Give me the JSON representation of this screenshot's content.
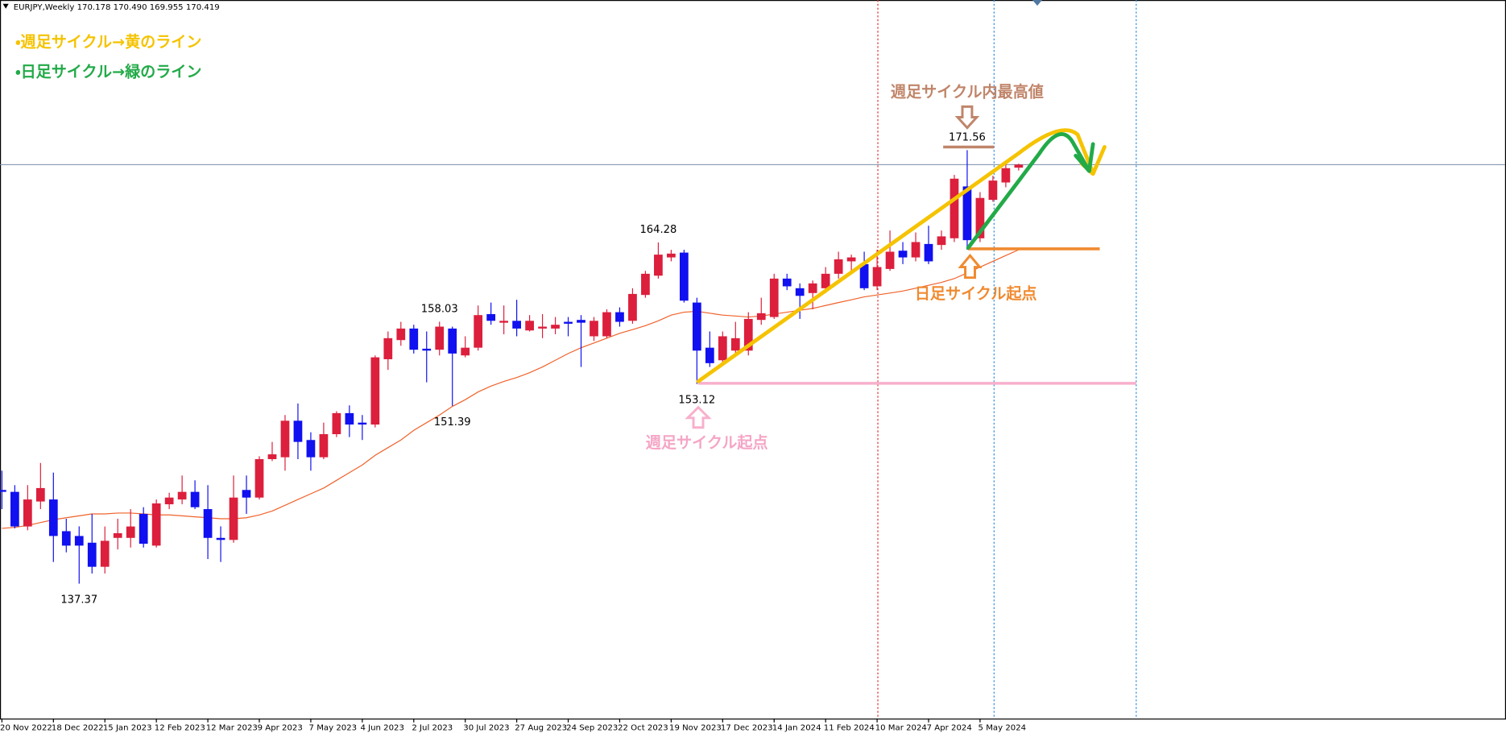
{
  "chart_data": {
    "type": "candlestick",
    "title": "EURJPY,Weekly  170.178 170.490 169.955 170.419",
    "annotations": [
      {
        "text": "・週足サイクル→黄のライン"
      },
      {
        "text": "・日足サイクル→緑のライン"
      },
      {
        "text": "週足サイクル内最高値"
      },
      {
        "text": "日足サイクル起点"
      },
      {
        "text": "週足サイクル起点"
      }
    ],
    "categories": [
      "20 Nov 2022",
      null,
      null,
      null,
      "18 Dec 2022",
      null,
      null,
      null,
      "15 Jan 2023",
      null,
      null,
      null,
      "12 Feb 2023",
      null,
      null,
      null,
      "12 Mar 2023",
      null,
      null,
      null,
      "9 Apr 2023",
      null,
      null,
      null,
      "7 May 2023",
      null,
      null,
      null,
      "4 Jun 2023",
      null,
      null,
      null,
      "2 Jul 2023",
      null,
      null,
      null,
      "30 Jul 2023",
      null,
      null,
      null,
      "27 Aug 2023",
      null,
      null,
      null,
      "24 Sep 2023",
      null,
      null,
      null,
      "22 Oct 2023",
      null,
      null,
      null,
      "19 Nov 2023",
      null,
      null,
      null,
      "17 Dec 2023",
      null,
      null,
      null,
      "14 Jan 2024",
      null,
      null,
      null,
      "11 Feb 2024",
      null,
      null,
      null,
      "10 Mar 2024",
      null,
      null,
      null,
      "7 Apr 2024",
      null,
      null,
      null,
      "5 May 2024",
      null,
      null,
      null
    ],
    "open": [
      144.76,
      144.61,
      141.88,
      143.85,
      144.01,
      141.51,
      141.13,
      140.6,
      138.7,
      140.98,
      140.98,
      142.87,
      140.37,
      143.63,
      144.01,
      144.61,
      143.25,
      140.98,
      140.82,
      144.76,
      144.16,
      147.19,
      147.34,
      150.22,
      148.7,
      147.34,
      149.16,
      150.82,
      150.07,
      149.92,
      155.07,
      156.58,
      157.49,
      155.9,
      155.82,
      157.49,
      155.37,
      155.98,
      158.63,
      157.95,
      158.1,
      157.34,
      157.49,
      157.49,
      158.02,
      158.17,
      156.88,
      156.88,
      158.78,
      158.1,
      160.14,
      161.66,
      163.1,
      163.48,
      159.54,
      155.98,
      154.99,
      155.75,
      155.75,
      158.17,
      158.4,
      161.43,
      160.67,
      160.29,
      160.67,
      161.81,
      162.79,
      162.57,
      160.82,
      162.19,
      163.63,
      163.1,
      164.16,
      164.08,
      164.61,
      168.7,
      164.61,
      167.64,
      169.01,
      170.178
    ],
    "high": [
      146.28,
      145.14,
      145.14,
      146.89,
      146.13,
      142.49,
      141.89,
      142.87,
      141.88,
      142.49,
      143.25,
      143.4,
      144.01,
      144.54,
      145.9,
      145.52,
      145.14,
      141.89,
      145.9,
      145.9,
      147.42,
      148.55,
      150.67,
      151.58,
      149.31,
      150.07,
      150.97,
      151.43,
      150.67,
      155.37,
      157.26,
      158.02,
      157.79,
      157.26,
      158.03,
      157.64,
      156.88,
      159.31,
      159.54,
      159.31,
      159.76,
      158.55,
      158.63,
      158.4,
      158.4,
      158.55,
      158.4,
      159.01,
      159.16,
      160.67,
      162.04,
      164.28,
      163.7,
      163.7,
      159.92,
      157.26,
      157.26,
      158.02,
      158.78,
      159.92,
      161.81,
      161.81,
      161.05,
      161.28,
      162.34,
      163.55,
      163.32,
      163.55,
      163.7,
      165.22,
      164.31,
      165.07,
      165.6,
      165.22,
      169.61,
      171.56,
      168.25,
      169.54,
      170.52,
      170.49
    ],
    "low": [
      143.25,
      141.73,
      141.58,
      143.25,
      139.08,
      139.84,
      137.37,
      138.17,
      138.17,
      140.07,
      140.22,
      140.22,
      140.22,
      143.25,
      143.63,
      143.25,
      139.31,
      139.08,
      140.6,
      142.87,
      144.01,
      147.04,
      146.28,
      147.19,
      146.28,
      147.19,
      148.93,
      148.93,
      148.7,
      149.69,
      154.23,
      156.13,
      155.52,
      153.25,
      155.37,
      151.39,
      155.22,
      155.75,
      157.79,
      157.04,
      156.88,
      157.26,
      156.73,
      157.04,
      156.88,
      154.46,
      156.51,
      156.73,
      157.64,
      157.87,
      159.92,
      161.43,
      162.79,
      159.54,
      153.12,
      154.46,
      154.61,
      155.52,
      155.37,
      157.79,
      158.25,
      160.52,
      158.25,
      159.01,
      160.29,
      161.43,
      161.81,
      160.52,
      160.52,
      162.04,
      162.57,
      162.79,
      162.57,
      163.7,
      164.31,
      163.7,
      164.31,
      167.49,
      168.63,
      169.955
    ],
    "close": [
      144.61,
      141.88,
      144.01,
      144.91,
      141.13,
      140.37,
      140.37,
      138.7,
      140.75,
      141.35,
      141.88,
      140.52,
      143.7,
      144.16,
      144.61,
      143.4,
      140.98,
      140.82,
      144.16,
      144.16,
      147.19,
      147.57,
      150.22,
      148.55,
      147.34,
      149.16,
      150.82,
      149.92,
      149.92,
      155.22,
      156.73,
      157.49,
      155.82,
      155.75,
      157.64,
      155.52,
      155.98,
      158.55,
      158.1,
      158.1,
      157.49,
      158.1,
      157.64,
      157.79,
      157.87,
      157.95,
      158.1,
      158.78,
      158.02,
      160.22,
      161.81,
      163.32,
      163.4,
      159.69,
      155.75,
      154.76,
      156.88,
      156.73,
      158.25,
      158.7,
      161.43,
      160.82,
      160.07,
      161.05,
      161.81,
      162.95,
      163.1,
      160.67,
      162.34,
      163.55,
      163.1,
      164.31,
      162.79,
      164.76,
      169.31,
      164.46,
      167.79,
      169.16,
      170.14,
      170.419
    ],
    "high_labels": [
      null,
      null,
      null,
      null,
      null,
      null,
      null,
      null,
      null,
      null,
      null,
      null,
      null,
      null,
      null,
      null,
      null,
      null,
      null,
      null,
      null,
      null,
      null,
      null,
      null,
      null,
      null,
      null,
      null,
      null,
      null,
      null,
      null,
      null,
      "158.03",
      null,
      null,
      null,
      null,
      null,
      null,
      null,
      null,
      null,
      null,
      null,
      null,
      null,
      null,
      null,
      null,
      "164.28",
      null,
      null,
      null,
      null,
      null,
      null,
      null,
      null,
      null,
      null,
      null,
      null,
      null,
      null,
      null,
      null,
      null,
      null,
      null,
      null,
      null,
      null,
      null,
      "171.56",
      null,
      null,
      null,
      null
    ],
    "low_labels": [
      null,
      null,
      null,
      null,
      null,
      null,
      "137.37",
      null,
      null,
      null,
      null,
      null,
      null,
      null,
      null,
      null,
      null,
      null,
      null,
      null,
      null,
      null,
      null,
      null,
      null,
      null,
      null,
      null,
      null,
      null,
      null,
      null,
      null,
      null,
      null,
      "151.39",
      null,
      null,
      null,
      null,
      null,
      null,
      null,
      null,
      null,
      null,
      null,
      null,
      null,
      null,
      null,
      null,
      null,
      null,
      "153.12",
      null,
      null,
      null,
      null,
      null,
      null,
      null,
      null,
      null,
      null,
      null,
      null,
      null,
      null,
      null,
      null,
      null,
      null,
      null,
      null,
      null,
      null,
      null,
      null,
      null
    ],
    "moving_average": {
      "color": "#f0622a",
      "values": [
        141.73,
        141.81,
        141.96,
        142.19,
        142.41,
        142.57,
        142.72,
        142.87,
        142.87,
        142.94,
        142.94,
        142.87,
        142.79,
        142.79,
        142.72,
        142.64,
        142.57,
        142.49,
        142.49,
        142.57,
        142.79,
        143.1,
        143.55,
        144.01,
        144.46,
        144.91,
        145.52,
        146.13,
        146.73,
        147.49,
        148.1,
        148.7,
        149.46,
        150.07,
        150.67,
        151.35,
        151.88,
        152.49,
        152.95,
        153.32,
        153.63,
        154.01,
        154.46,
        154.99,
        155.52,
        155.98,
        156.35,
        156.73,
        157.11,
        157.41,
        157.72,
        158.1,
        158.55,
        158.78,
        158.85,
        158.7,
        158.55,
        158.48,
        158.4,
        158.48,
        158.63,
        158.78,
        158.93,
        159.08,
        159.31,
        159.54,
        159.76,
        159.99,
        160.14,
        160.29,
        160.45,
        160.67,
        160.9,
        161.13,
        161.43,
        161.88,
        162.34,
        162.79,
        163.25,
        163.7
      ]
    },
    "up_color": "#dc1f3c",
    "down_color": "#1010f0",
    "ylim": [
      126.73,
      183.4
    ]
  }
}
